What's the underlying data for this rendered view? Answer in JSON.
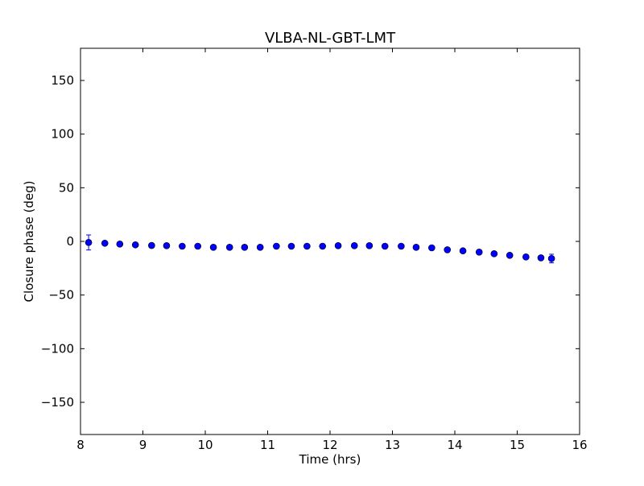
{
  "chart_data": {
    "type": "scatter",
    "title": "VLBA-NL-GBT-LMT",
    "xlabel": "Time (hrs)",
    "ylabel": "Closure phase (deg)",
    "xlim": [
      8,
      16
    ],
    "ylim": [
      -180,
      180
    ],
    "xticks": [
      8,
      9,
      10,
      11,
      12,
      13,
      14,
      15,
      16
    ],
    "yticks": [
      -150,
      -100,
      -50,
      0,
      50,
      100,
      150
    ],
    "ytick_labels": [
      "−150",
      "−100",
      "−50",
      "0",
      "50",
      "100",
      "150"
    ],
    "grid": false,
    "marker_color": "#0000ff",
    "series": [
      {
        "name": "closure phase",
        "x": [
          8.13,
          8.39,
          8.63,
          8.88,
          9.14,
          9.38,
          9.63,
          9.88,
          10.13,
          10.39,
          10.63,
          10.88,
          11.14,
          11.38,
          11.63,
          11.88,
          12.13,
          12.39,
          12.63,
          12.88,
          13.14,
          13.38,
          13.63,
          13.88,
          14.13,
          14.39,
          14.63,
          14.88,
          15.14,
          15.38,
          15.55
        ],
        "y": [
          -1,
          -1.7,
          -2.5,
          -3.2,
          -3.8,
          -4,
          -4.5,
          -4.5,
          -5.5,
          -5.5,
          -5.5,
          -5.5,
          -4.5,
          -4.5,
          -4.5,
          -4.5,
          -4,
          -4,
          -4,
          -4.5,
          -4.5,
          -5.5,
          -6,
          -7.8,
          -8.8,
          -10,
          -11.5,
          -13,
          -14.5,
          -15.3,
          -16
        ],
        "yerr": [
          7,
          1.5,
          1.5,
          1.5,
          1.5,
          1.5,
          1.5,
          1.5,
          1.5,
          1.5,
          1.5,
          1.5,
          1.5,
          1.5,
          1.5,
          1.5,
          1.5,
          1.5,
          1.5,
          1.5,
          1.5,
          1.5,
          1.5,
          1.5,
          1.5,
          1.5,
          1.5,
          1.5,
          1.5,
          2,
          4
        ]
      }
    ]
  }
}
